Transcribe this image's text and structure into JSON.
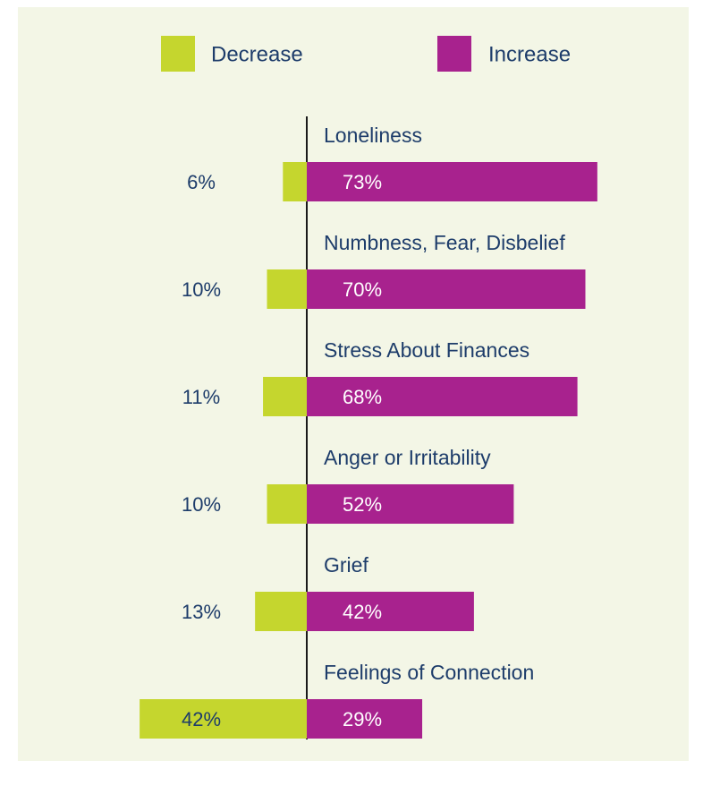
{
  "chart_data": {
    "type": "diverging_bar",
    "categories": [
      "Loneliness",
      "Numbness, Fear, Disbelief",
      "Stress About Finances",
      "Anger or Irritability",
      "Grief",
      "Feelings of Connection"
    ],
    "series": [
      {
        "name": "Decrease",
        "color": "#c5d62e",
        "values": [
          6,
          10,
          11,
          10,
          13,
          42
        ],
        "value_labels": [
          "6%",
          "10%",
          "11%",
          "10%",
          "13%",
          "42%"
        ]
      },
      {
        "name": "Increase",
        "color": "#a8228e",
        "values": [
          73,
          70,
          68,
          52,
          42,
          29
        ],
        "value_labels": [
          "73%",
          "70%",
          "68%",
          "52%",
          "42%",
          "29%"
        ]
      }
    ]
  }
}
